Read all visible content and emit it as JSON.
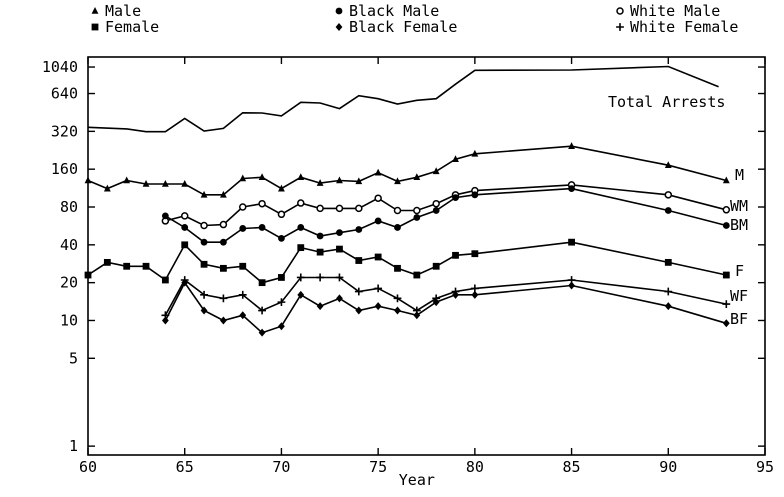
{
  "chart_data": {
    "type": "line",
    "xlabel": "Year",
    "ylabel": "",
    "title": "",
    "xlim": [
      60,
      95
    ],
    "ylim": [
      0.85,
      1250
    ],
    "y_scale": "log",
    "grid": false,
    "x_ticks": [
      60,
      65,
      70,
      75,
      80,
      85,
      90,
      95
    ],
    "y_ticks": [
      1,
      5,
      10,
      20,
      40,
      80,
      160,
      320,
      640,
      1040
    ],
    "legend": {
      "placement": "top",
      "entries": [
        {
          "marker": "triangle",
          "label": "Male"
        },
        {
          "marker": "square",
          "label": "Female"
        },
        {
          "marker": "dot",
          "label": "Black Male"
        },
        {
          "marker": "diamond",
          "label": "Black Female"
        },
        {
          "marker": "circle",
          "label": "White Male"
        },
        {
          "marker": "plus",
          "label": "White Female"
        }
      ]
    },
    "series": [
      {
        "name": "Total Arrests",
        "marker": "none",
        "x": [
          60,
          62,
          63,
          64,
          65,
          66,
          67,
          68,
          69,
          70,
          71,
          72,
          73,
          74,
          75,
          76,
          77,
          78,
          79,
          80,
          85,
          90,
          92.6
        ],
        "y": [
          345,
          335,
          318,
          318,
          405,
          322,
          338,
          450,
          448,
          425,
          545,
          538,
          486,
          615,
          582,
          528,
          565,
          582,
          760,
          980,
          985,
          1050,
          725
        ]
      },
      {
        "name": "M",
        "marker": "triangle",
        "x": [
          60,
          61,
          62,
          63,
          64,
          65,
          66,
          67,
          68,
          69,
          70,
          71,
          72,
          73,
          74,
          75,
          76,
          77,
          78,
          79,
          80,
          85,
          90,
          93
        ],
        "y": [
          130,
          112,
          130,
          122,
          122,
          122,
          100,
          100,
          135,
          138,
          112,
          138,
          124,
          130,
          128,
          150,
          128,
          138,
          154,
          192,
          212,
          244,
          172,
          130
        ]
      },
      {
        "name": "WM",
        "marker": "circle",
        "x": [
          64,
          65,
          66,
          67,
          68,
          69,
          70,
          71,
          72,
          73,
          74,
          75,
          76,
          77,
          78,
          79,
          80,
          85,
          90,
          93
        ],
        "y": [
          62,
          68,
          57,
          58,
          80,
          85,
          70,
          86,
          78,
          78,
          78,
          94,
          75,
          75,
          85,
          100,
          108,
          120,
          100,
          76
        ]
      },
      {
        "name": "BM",
        "marker": "dot",
        "x": [
          64,
          65,
          66,
          67,
          68,
          69,
          70,
          71,
          72,
          73,
          74,
          75,
          76,
          77,
          78,
          79,
          80,
          85,
          90,
          93
        ],
        "y": [
          68,
          55,
          42,
          42,
          54,
          55,
          45,
          55,
          47,
          50,
          53,
          62,
          55,
          66,
          75,
          95,
          100,
          112,
          75,
          57
        ]
      },
      {
        "name": "F",
        "marker": "square",
        "x": [
          60,
          61,
          62,
          63,
          64,
          65,
          66,
          67,
          68,
          69,
          70,
          71,
          72,
          73,
          74,
          75,
          76,
          77,
          78,
          79,
          80,
          85,
          90,
          93
        ],
        "y": [
          23,
          29,
          27,
          27,
          21,
          40,
          28,
          26,
          27,
          20,
          22,
          38,
          35,
          37,
          30,
          32,
          26,
          23,
          27,
          33,
          34,
          42,
          29,
          23
        ]
      },
      {
        "name": "WF",
        "marker": "plus",
        "x": [
          64,
          65,
          66,
          67,
          68,
          69,
          70,
          71,
          72,
          73,
          74,
          75,
          76,
          77,
          78,
          79,
          80,
          85,
          90,
          93
        ],
        "y": [
          11,
          21,
          16,
          15,
          16,
          12,
          14,
          22,
          22,
          22,
          17,
          18,
          15,
          12,
          15,
          17,
          18,
          21,
          17,
          13.5
        ]
      },
      {
        "name": "BF",
        "marker": "diamond",
        "x": [
          64,
          65,
          66,
          67,
          68,
          69,
          70,
          71,
          72,
          73,
          74,
          75,
          76,
          77,
          78,
          79,
          80,
          85,
          90,
          93
        ],
        "y": [
          10,
          20,
          12,
          10,
          11,
          8,
          9,
          16,
          13,
          15,
          12,
          13,
          12,
          11,
          14,
          16,
          16,
          19,
          13,
          9.5
        ]
      }
    ]
  }
}
